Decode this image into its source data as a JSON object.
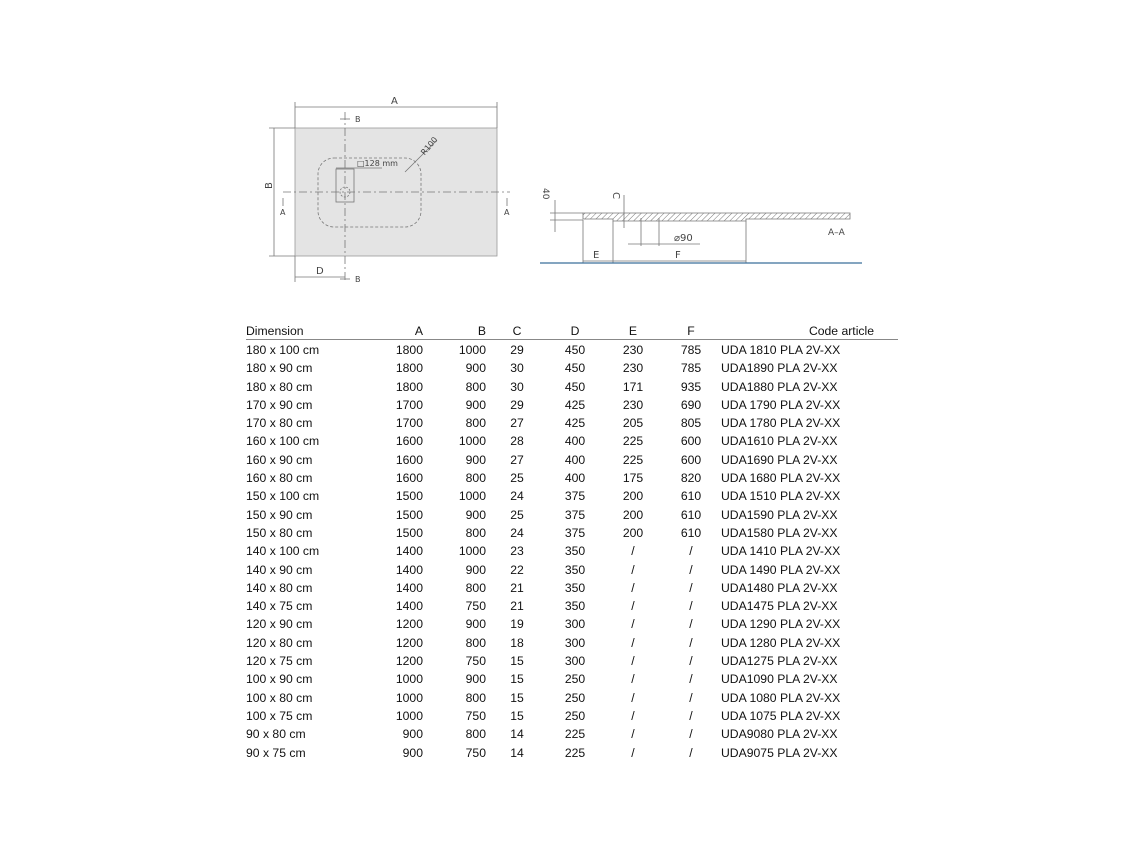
{
  "drawing": {
    "plan_labels": {
      "a": "A",
      "b": "B",
      "d": "D",
      "section_mark": "A",
      "cut_mark": "B",
      "drain_size": "□128 mm",
      "radius": "R100"
    },
    "section_labels": {
      "height": "40",
      "c": "C",
      "e": "E",
      "f": "F",
      "drain_diameter": "⌀90",
      "section_name": "A–A"
    },
    "colors": {
      "tray_fill": "#e4e4e4",
      "floor_line": "#3a6f9a"
    }
  },
  "table": {
    "headers": [
      "Dimension",
      "A",
      "B",
      "C",
      "D",
      "E",
      "F",
      "Code article"
    ],
    "rows": [
      [
        "180 x 100 cm",
        "1800",
        "1000",
        "29",
        "450",
        "230",
        "785",
        "UDA 1810 PLA 2V-XX"
      ],
      [
        "180 x 90 cm",
        "1800",
        "900",
        "30",
        "450",
        "230",
        "785",
        "UDA1890 PLA 2V-XX"
      ],
      [
        "180 x 80 cm",
        "1800",
        "800",
        "30",
        "450",
        "171",
        "935",
        "UDA1880 PLA 2V-XX"
      ],
      [
        "170 x 90 cm",
        "1700",
        "900",
        "29",
        "425",
        "230",
        "690",
        "UDA 1790 PLA 2V-XX"
      ],
      [
        "170 x 80 cm",
        "1700",
        "800",
        "27",
        "425",
        "205",
        "805",
        "UDA 1780 PLA 2V-XX"
      ],
      [
        "160 x 100 cm",
        "1600",
        "1000",
        "28",
        "400",
        "225",
        "600",
        "UDA1610 PLA 2V-XX"
      ],
      [
        "160 x 90 cm",
        "1600",
        "900",
        "27",
        "400",
        "225",
        "600",
        "UDA1690 PLA 2V-XX"
      ],
      [
        "160 x 80 cm",
        "1600",
        "800",
        "25",
        "400",
        "175",
        "820",
        "UDA 1680 PLA 2V-XX"
      ],
      [
        "150 x 100 cm",
        "1500",
        "1000",
        "24",
        "375",
        "200",
        "610",
        "UDA 1510 PLA 2V-XX"
      ],
      [
        "150 x 90 cm",
        "1500",
        "900",
        "25",
        "375",
        "200",
        "610",
        "UDA1590 PLA 2V-XX"
      ],
      [
        "150 x 80 cm",
        "1500",
        "800",
        "24",
        "375",
        "200",
        "610",
        "UDA1580 PLA 2V-XX"
      ],
      [
        "140 x 100 cm",
        "1400",
        "1000",
        "23",
        "350",
        "/",
        "/",
        "UDA 1410 PLA 2V-XX"
      ],
      [
        "140 x 90 cm",
        "1400",
        "900",
        "22",
        "350",
        "/",
        "/",
        "UDA 1490 PLA 2V-XX"
      ],
      [
        "140 x 80 cm",
        "1400",
        "800",
        "21",
        "350",
        "/",
        "/",
        "UDA1480 PLA 2V-XX"
      ],
      [
        "140 x 75 cm",
        "1400",
        "750",
        "21",
        "350",
        "/",
        "/",
        "UDA1475 PLA 2V-XX"
      ],
      [
        "120 x 90 cm",
        "1200",
        "900",
        "19",
        "300",
        "/",
        "/",
        "UDA 1290 PLA 2V-XX"
      ],
      [
        "120 x 80 cm",
        "1200",
        "800",
        "18",
        "300",
        "/",
        "/",
        "UDA 1280 PLA 2V-XX"
      ],
      [
        "120 x 75 cm",
        "1200",
        "750",
        "15",
        "300",
        "/",
        "/",
        "UDA1275 PLA 2V-XX"
      ],
      [
        "100 x 90 cm",
        "1000",
        "900",
        "15",
        "250",
        "/",
        "/",
        "UDA1090 PLA 2V-XX"
      ],
      [
        "100 x 80 cm",
        "1000",
        "800",
        "15",
        "250",
        "/",
        "/",
        "UDA 1080 PLA 2V-XX"
      ],
      [
        "100 x 75 cm",
        "1000",
        "750",
        "15",
        "250",
        "/",
        "/",
        "UDA 1075 PLA 2V-XX"
      ],
      [
        "90 x 80 cm",
        "900",
        "800",
        "14",
        "225",
        "/",
        "/",
        "UDA9080 PLA 2V-XX"
      ],
      [
        "90 x 75 cm",
        "900",
        "750",
        "14",
        "225",
        "/",
        "/",
        "UDA9075 PLA 2V-XX"
      ]
    ]
  }
}
